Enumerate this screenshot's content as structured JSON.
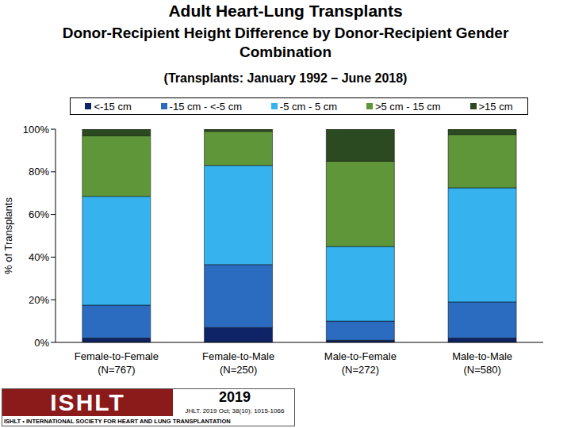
{
  "chart_data": {
    "type": "bar",
    "title": "Adult Heart-Lung Transplants",
    "subtitle": "Donor-Recipient Height Difference by Donor-Recipient Gender Combination",
    "period": "(Transplants: January 1992 – June 2018)",
    "y_label": "% of Transplants",
    "stacked": true,
    "grid": false,
    "legend": "top",
    "categories": [
      "Female-to-Female\n(N=767)",
      "Female-to-Male\n(N=250)",
      "Male-to-Female\n(N=272)",
      "Male-to-Male\n(N=580)"
    ],
    "series": [
      {
        "name": "<-15 cm",
        "color": "#0e2466",
        "values": [
          2,
          7,
          1,
          2
        ]
      },
      {
        "name": "-15 cm - <-5 cm",
        "color": "#2b6cc0",
        "values": [
          15.5,
          29.5,
          9,
          17
        ]
      },
      {
        "name": "-5 cm - 5 cm",
        "color": "#36b3ef",
        "values": [
          51,
          46.5,
          35,
          53.5
        ]
      },
      {
        "name": ">5 cm - 15 cm",
        "color": "#5e9639",
        "values": [
          28.5,
          16,
          40,
          25
        ]
      },
      {
        "name": ">15 cm",
        "color": "#2c4a22",
        "values": [
          3,
          1,
          15,
          2.5
        ]
      }
    ],
    "ylim": [
      0,
      100
    ],
    "yticks": [
      {
        "value": 0,
        "label": "0%"
      },
      {
        "value": 20,
        "label": "20%"
      },
      {
        "value": 40,
        "label": "40%"
      },
      {
        "value": 60,
        "label": "60%"
      },
      {
        "value": 80,
        "label": "80%"
      },
      {
        "value": 100,
        "label": "100%"
      }
    ],
    "annotations": [
      "ISHLT",
      "ISHLT • INTERNATIONAL SOCIETY FOR HEART AND LUNG TRANSPLANTATION",
      "2019",
      "JHLT. 2019 Oct; 38(10): 1015-1066"
    ]
  }
}
